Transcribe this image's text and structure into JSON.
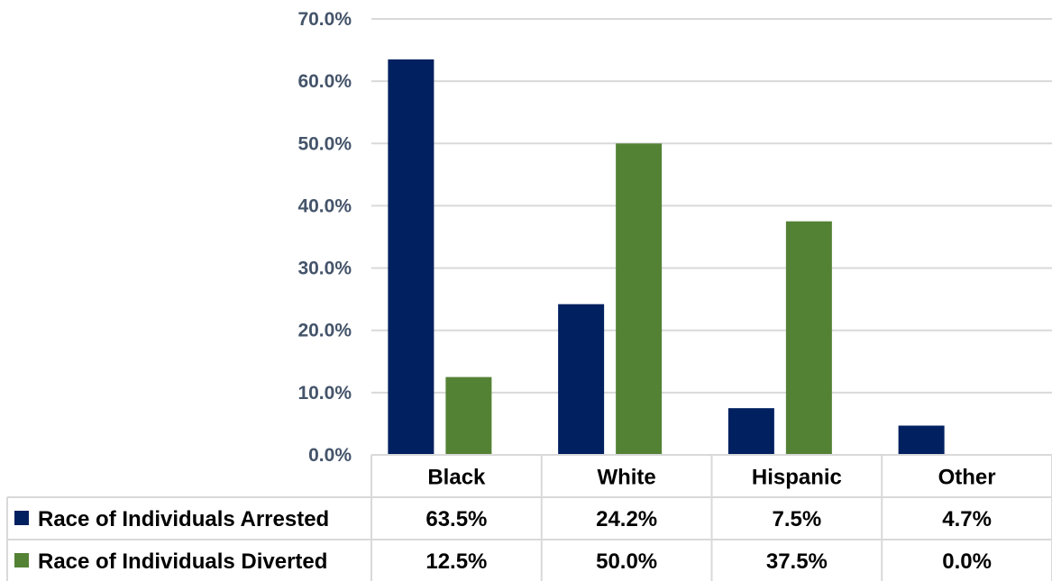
{
  "chart_data": {
    "type": "bar",
    "categories": [
      "Black",
      "White",
      "Hispanic",
      "Other"
    ],
    "series": [
      {
        "name": "Race of Individuals Arrested",
        "values": [
          63.5,
          24.2,
          7.5,
          4.7
        ],
        "labels": [
          "63.5%",
          "24.2%",
          "7.5%",
          "4.7%"
        ],
        "color": "#002060"
      },
      {
        "name": "Race of Individuals Diverted",
        "values": [
          12.5,
          50.0,
          37.5,
          0.0
        ],
        "labels": [
          "12.5%",
          "50.0%",
          "37.5%",
          "0.0%"
        ],
        "color": "#548235"
      }
    ],
    "y_ticks": [
      "0.0%",
      "10.0%",
      "20.0%",
      "30.0%",
      "40.0%",
      "50.0%",
      "60.0%",
      "70.0%"
    ],
    "ylim": [
      0,
      70
    ],
    "title": "",
    "xlabel": "",
    "ylabel": "",
    "grid": true,
    "legend": "data-table"
  }
}
